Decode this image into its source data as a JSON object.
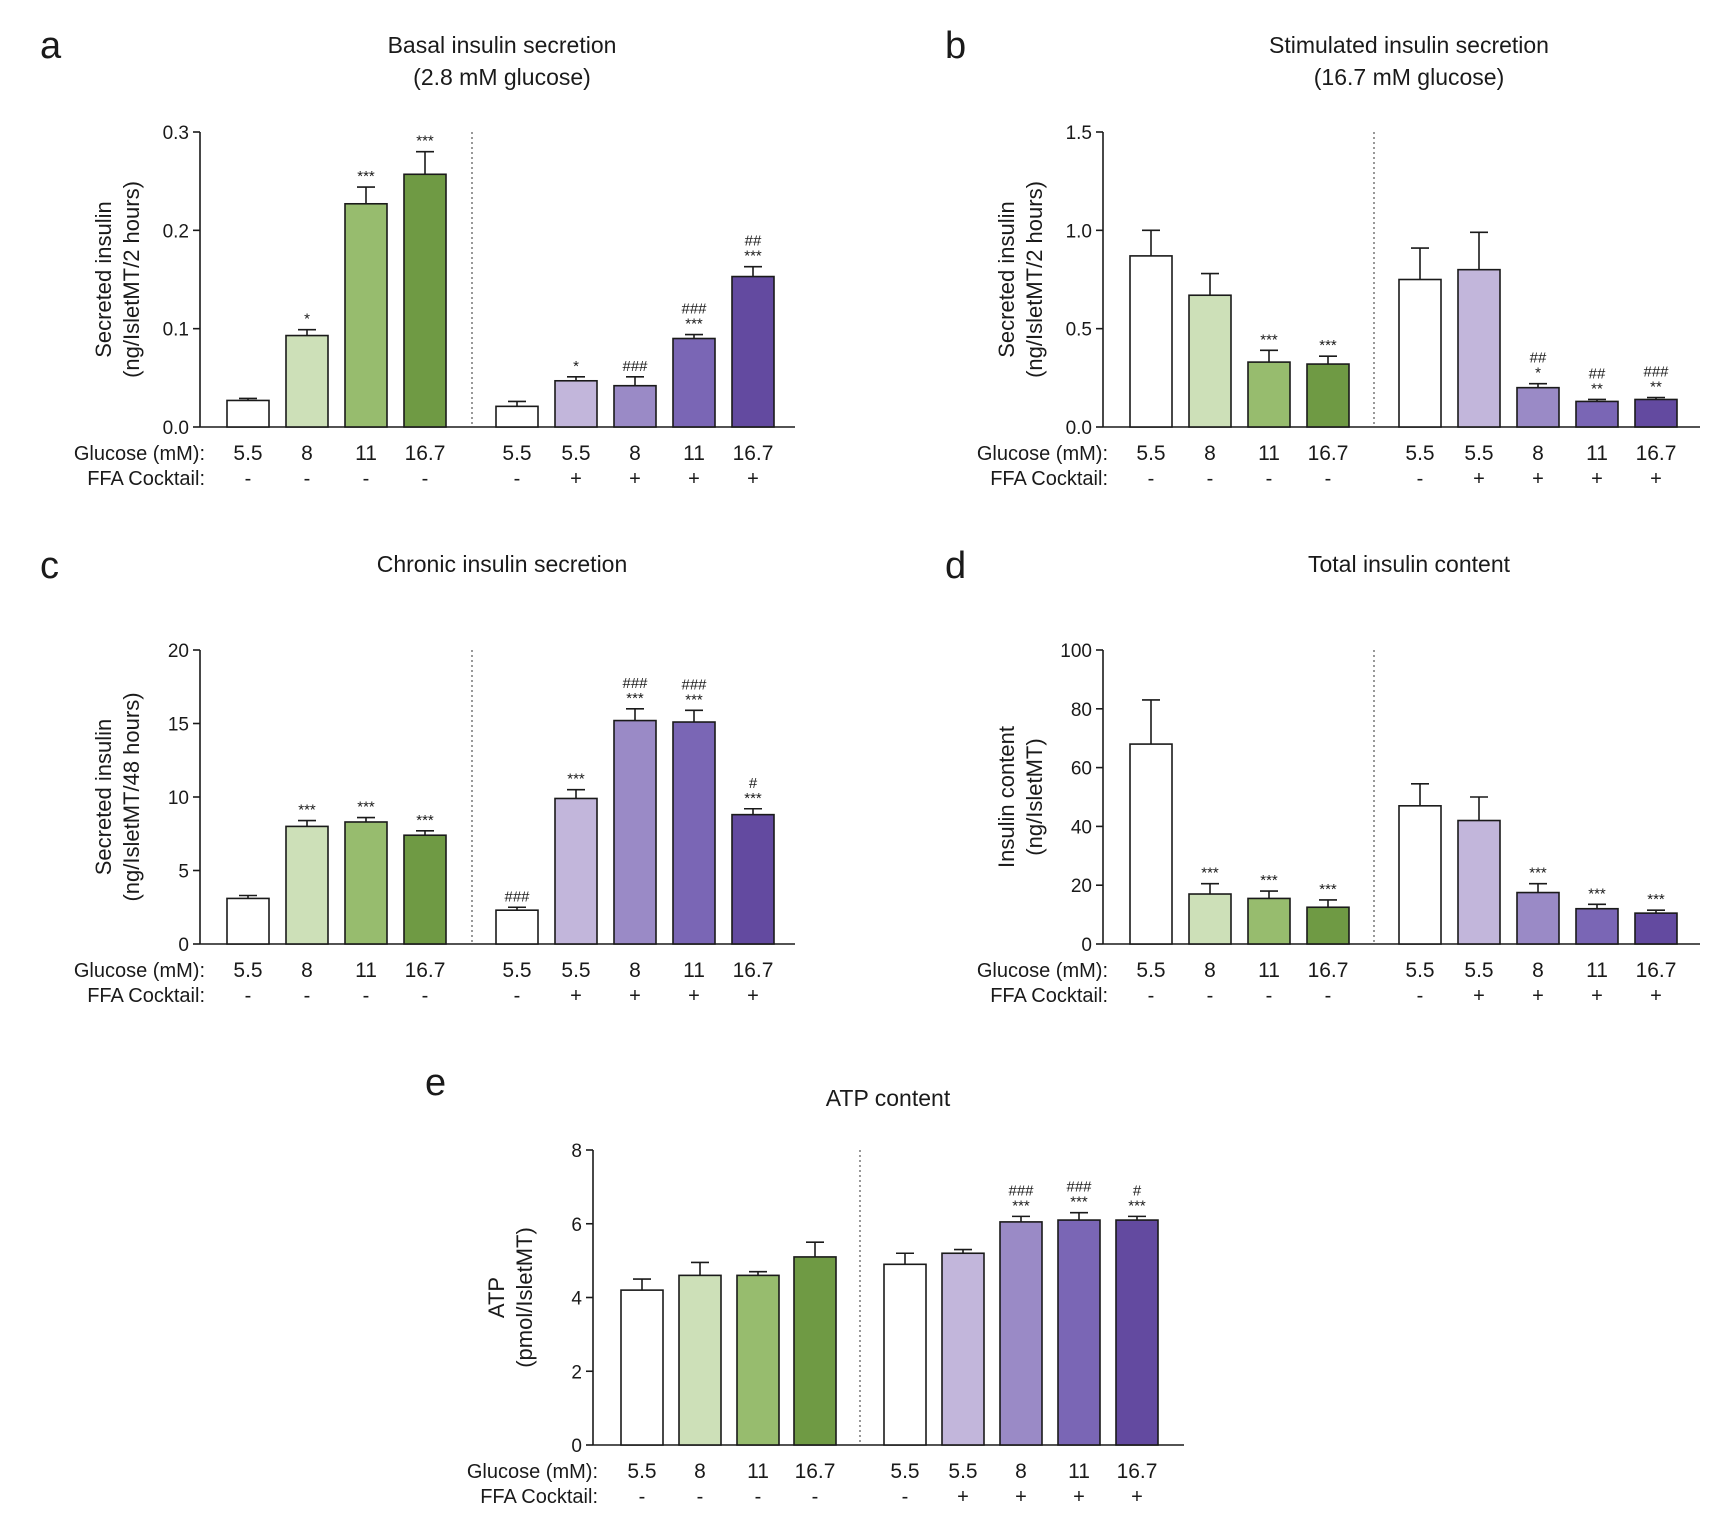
{
  "figure": {
    "row_labels": {
      "glucose": "Glucose (mM):",
      "ffa": "FFA Cocktail:"
    },
    "glucose_levels": [
      "5.5",
      "8",
      "11",
      "16.7",
      "5.5",
      "5.5",
      "8",
      "11",
      "16.7"
    ],
    "ffa_flags": [
      "-",
      "-",
      "-",
      "-",
      "-",
      "+",
      "+",
      "+",
      "+"
    ],
    "colors": [
      "#ffffff",
      "#cde0b8",
      "#97bc6e",
      "#6f9a44",
      "#ffffff",
      "#c2b6db",
      "#9a8ac6",
      "#7a66b5",
      "#634aa0"
    ]
  },
  "chart_data": [
    {
      "letter": "a",
      "type": "bar",
      "title": [
        "Basal insulin secretion",
        "(2.8 mM glucose)"
      ],
      "ylabel": [
        "Secreted insulin",
        "(ng/IsletMT/2 hours)"
      ],
      "ylim": [
        0,
        0.3
      ],
      "yticks": [
        "0.0",
        "0.1",
        "0.2",
        "0.3"
      ],
      "yticks_values": [
        0,
        0.1,
        0.2,
        0.3
      ],
      "values": [
        0.027,
        0.093,
        0.227,
        0.257,
        0.021,
        0.047,
        0.042,
        0.09,
        0.153
      ],
      "errors": [
        0.002,
        0.006,
        0.017,
        0.023,
        0.005,
        0.004,
        0.009,
        0.004,
        0.01
      ],
      "sig_star": [
        "",
        "*",
        "***",
        "***",
        "",
        "*",
        "",
        "***",
        "***"
      ],
      "sig_hash": [
        "",
        "",
        "",
        "",
        "",
        "",
        "###",
        "###",
        "##"
      ]
    },
    {
      "letter": "b",
      "type": "bar",
      "title": [
        "Stimulated insulin secretion",
        "(16.7 mM glucose)"
      ],
      "ylabel": [
        "Secreted insulin",
        "(ng/IsletMT/2 hours)"
      ],
      "ylim": [
        0,
        1.5
      ],
      "yticks": [
        "0.0",
        "0.5",
        "1.0",
        "1.5"
      ],
      "yticks_values": [
        0,
        0.5,
        1.0,
        1.5
      ],
      "values": [
        0.87,
        0.67,
        0.33,
        0.32,
        0.75,
        0.8,
        0.2,
        0.13,
        0.14
      ],
      "errors": [
        0.13,
        0.11,
        0.06,
        0.04,
        0.16,
        0.19,
        0.02,
        0.01,
        0.01
      ],
      "sig_star": [
        "",
        "",
        "***",
        "***",
        "",
        "",
        "*",
        "**",
        "**"
      ],
      "sig_hash": [
        "",
        "",
        "",
        "",
        "",
        "",
        "##",
        "##",
        "###"
      ]
    },
    {
      "letter": "c",
      "type": "bar",
      "title": [
        "Chronic insulin secretion"
      ],
      "ylabel": [
        "Secreted insulin",
        "(ng/IsletMT/48 hours)"
      ],
      "ylim": [
        0,
        20
      ],
      "yticks": [
        "0",
        "5",
        "10",
        "15",
        "20"
      ],
      "yticks_values": [
        0,
        5,
        10,
        15,
        20
      ],
      "values": [
        3.1,
        8.0,
        8.3,
        7.4,
        2.3,
        9.9,
        15.2,
        15.1,
        8.8
      ],
      "errors": [
        0.2,
        0.4,
        0.3,
        0.3,
        0.2,
        0.6,
        0.8,
        0.8,
        0.4
      ],
      "sig_star": [
        "",
        "***",
        "***",
        "***",
        "",
        "***",
        "***",
        "***",
        "***"
      ],
      "sig_hash": [
        "",
        "",
        "",
        "",
        "###",
        "",
        "###",
        "###",
        "#"
      ]
    },
    {
      "letter": "d",
      "type": "bar",
      "title": [
        "Total insulin content"
      ],
      "ylabel": [
        "Insulin content",
        "(ng/IsletMT)"
      ],
      "ylim": [
        0,
        100
      ],
      "yticks": [
        "0",
        "20",
        "40",
        "60",
        "80",
        "100"
      ],
      "yticks_values": [
        0,
        20,
        40,
        60,
        80,
        100
      ],
      "values": [
        68,
        17,
        15.5,
        12.5,
        47,
        42,
        17.5,
        12,
        10.5
      ],
      "errors": [
        15,
        3.5,
        2.5,
        2.5,
        7.5,
        8,
        3,
        1.5,
        1
      ],
      "sig_star": [
        "",
        "***",
        "***",
        "***",
        "",
        "",
        "***",
        "***",
        "***"
      ],
      "sig_hash": [
        "",
        "",
        "",
        "",
        "",
        "",
        "",
        "",
        ""
      ]
    },
    {
      "letter": "e",
      "type": "bar",
      "title": [
        "ATP content"
      ],
      "ylabel": [
        "ATP",
        "(pmol/IsletMT)"
      ],
      "ylim": [
        0,
        8
      ],
      "yticks": [
        "0",
        "2",
        "4",
        "6",
        "8"
      ],
      "yticks_values": [
        0,
        2,
        4,
        6,
        8
      ],
      "values": [
        4.2,
        4.6,
        4.6,
        5.1,
        4.9,
        5.2,
        6.05,
        6.1,
        6.1
      ],
      "errors": [
        0.3,
        0.35,
        0.1,
        0.4,
        0.3,
        0.1,
        0.15,
        0.2,
        0.1
      ],
      "sig_star": [
        "",
        "",
        "",
        "",
        "",
        "",
        "***",
        "***",
        "***"
      ],
      "sig_hash": [
        "",
        "",
        "",
        "",
        "",
        "",
        "###",
        "###",
        "#"
      ]
    }
  ]
}
